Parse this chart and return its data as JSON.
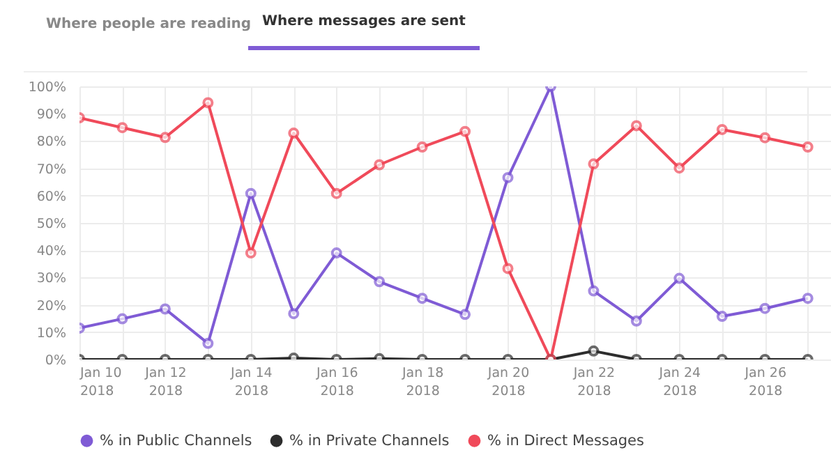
{
  "chart_data": {
    "type": "line",
    "annotations": [
      "Where people are reading",
      "Where messages are sent"
    ],
    "x": [
      "2018-01-10",
      "2018-01-11",
      "2018-01-12",
      "2018-01-13",
      "2018-01-14",
      "2018-01-15",
      "2018-01-16",
      "2018-01-17",
      "2018-01-18",
      "2018-01-19",
      "2018-01-20",
      "2018-01-21",
      "2018-01-22",
      "2018-01-23",
      "2018-01-24",
      "2018-01-25",
      "2018-01-26",
      "2018-01-27"
    ],
    "series": [
      {
        "name": "% in Public Channels",
        "color": "#7f5bd5",
        "values": [
          11.5,
          14.9,
          18.5,
          5.9,
          60.8,
          16.8,
          39,
          28.5,
          22.4,
          16.5,
          66.6,
          100,
          25.1,
          14.1,
          29.7,
          15.8,
          18.7,
          22.4
        ]
      },
      {
        "name": "% in Private Channels",
        "color": "#2d2d2d",
        "values": [
          0,
          0,
          0,
          0,
          0,
          0.5,
          0,
          0.3,
          0,
          0,
          0,
          0,
          3.1,
          0,
          0,
          0,
          0,
          0
        ]
      },
      {
        "name": "% in Direct Messages",
        "color": "#f04a5a",
        "values": [
          88.5,
          84.9,
          81.3,
          94,
          39,
          82.9,
          60.8,
          71.3,
          77.8,
          83.5,
          33.3,
          0,
          71.6,
          85.6,
          70.1,
          84.2,
          81.2,
          77.8
        ]
      }
    ],
    "xlim": [
      "2018-01-10",
      "2018-01-27T13:00"
    ],
    "xticks": [
      {
        "value": "2018-01-10",
        "label": "Jan 10\n2018"
      },
      {
        "value": "2018-01-11",
        "label": null
      },
      {
        "value": "2018-01-12",
        "label": "Jan 12\n2018"
      },
      {
        "value": "2018-01-13",
        "label": null
      },
      {
        "value": "2018-01-14",
        "label": "Jan 14\n2018"
      },
      {
        "value": "2018-01-15",
        "label": null
      },
      {
        "value": "2018-01-16",
        "label": "Jan 16\n2018"
      },
      {
        "value": "2018-01-17",
        "label": null
      },
      {
        "value": "2018-01-18",
        "label": "Jan 18\n2018"
      },
      {
        "value": "2018-01-19",
        "label": null
      },
      {
        "value": "2018-01-20",
        "label": "Jan 20\n2018"
      },
      {
        "value": "2018-01-21",
        "label": null
      },
      {
        "value": "2018-01-22",
        "label": "Jan 22\n2018"
      },
      {
        "value": "2018-01-23",
        "label": null
      },
      {
        "value": "2018-01-24",
        "label": "Jan 24\n2018"
      },
      {
        "value": "2018-01-25",
        "label": null
      },
      {
        "value": "2018-01-26",
        "label": "Jan 26\n2018"
      },
      {
        "value": "2018-01-27",
        "label": null
      }
    ],
    "ylim": [
      0,
      100
    ],
    "yticks": [
      {
        "value": 0,
        "label": "0%"
      },
      {
        "value": 10,
        "label": "10%"
      },
      {
        "value": 20,
        "label": "20%"
      },
      {
        "value": 30,
        "label": "30%"
      },
      {
        "value": 40,
        "label": "40%"
      },
      {
        "value": 50,
        "label": "50%"
      },
      {
        "value": 60,
        "label": "60%"
      },
      {
        "value": 70,
        "label": "70%"
      },
      {
        "value": 80,
        "label": "80%"
      },
      {
        "value": 90,
        "label": "90%"
      },
      {
        "value": 100,
        "label": "100%"
      }
    ],
    "grid": true,
    "legend": "bottom",
    "marker": "circle",
    "line_style": "solid"
  }
}
